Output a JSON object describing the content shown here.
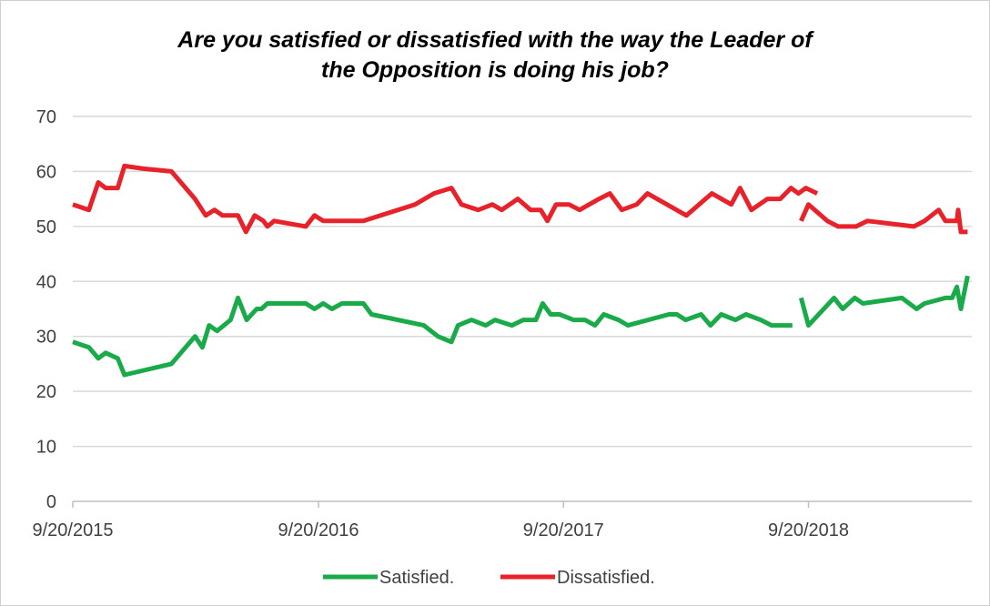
{
  "chart_data": {
    "type": "line",
    "title_line1": "Are you satisfied or dissatisfied with the way the Leader of",
    "title_line2": "the Opposition is doing his job?",
    "xlabel": "",
    "ylabel": "",
    "ylim": [
      0,
      70
    ],
    "y_ticks": [
      "0",
      "10",
      "20",
      "30",
      "40",
      "50",
      "60",
      "70"
    ],
    "x_ticks": [
      "9/20/2015",
      "9/20/2016",
      "9/20/2017",
      "9/20/2018"
    ],
    "x_range": [
      "2015-09-20",
      "2019-05-15"
    ],
    "grid": true,
    "legend_position": "bottom",
    "series": [
      {
        "name": "Satisfied.",
        "color": "#1aaa4a",
        "segments": [
          [
            [
              "2015-09-20",
              29
            ],
            [
              "2015-10-14",
              28
            ],
            [
              "2015-10-28",
              26
            ],
            [
              "2015-11-08",
              27
            ],
            [
              "2015-11-26",
              26
            ],
            [
              "2015-12-06",
              23
            ],
            [
              "2016-02-14",
              25
            ],
            [
              "2016-03-20",
              30
            ],
            [
              "2016-03-31",
              28
            ],
            [
              "2016-04-10",
              32
            ],
            [
              "2016-04-22",
              31
            ],
            [
              "2016-05-12",
              33
            ],
            [
              "2016-05-23",
              37
            ],
            [
              "2016-06-05",
              33
            ],
            [
              "2016-06-20",
              35
            ],
            [
              "2016-06-27",
              35
            ],
            [
              "2016-07-06",
              36
            ],
            [
              "2016-09-01",
              36
            ],
            [
              "2016-09-14",
              35
            ],
            [
              "2016-09-27",
              36
            ],
            [
              "2016-10-10",
              35
            ],
            [
              "2016-10-25",
              36
            ],
            [
              "2016-11-26",
              36
            ],
            [
              "2016-12-08",
              34
            ],
            [
              "2017-02-24",
              32
            ],
            [
              "2017-03-17",
              30
            ],
            [
              "2017-04-06",
              29
            ],
            [
              "2017-04-16",
              32
            ],
            [
              "2017-05-06",
              33
            ],
            [
              "2017-05-27",
              32
            ],
            [
              "2017-06-10",
              33
            ],
            [
              "2017-07-05",
              32
            ],
            [
              "2017-07-22",
              33
            ],
            [
              "2017-08-10",
              33
            ],
            [
              "2017-08-20",
              36
            ],
            [
              "2017-09-01",
              34
            ],
            [
              "2017-09-14",
              34
            ],
            [
              "2017-10-05",
              33
            ],
            [
              "2017-10-22",
              33
            ],
            [
              "2017-11-06",
              32
            ],
            [
              "2017-11-19",
              34
            ],
            [
              "2017-12-11",
              33
            ],
            [
              "2017-12-25",
              32
            ],
            [
              "2018-02-24",
              34
            ],
            [
              "2018-03-08",
              34
            ],
            [
              "2018-03-21",
              33
            ],
            [
              "2018-04-13",
              34
            ],
            [
              "2018-04-27",
              32
            ],
            [
              "2018-05-13",
              34
            ],
            [
              "2018-06-03",
              33
            ],
            [
              "2018-06-19",
              34
            ],
            [
              "2018-07-11",
              33
            ],
            [
              "2018-07-27",
              32
            ],
            [
              "2018-08-27",
              32
            ]
          ],
          [
            [
              "2018-09-09",
              37
            ],
            [
              "2018-09-20",
              32
            ],
            [
              "2018-10-28",
              37
            ],
            [
              "2018-11-10",
              35
            ],
            [
              "2018-11-28",
              37
            ],
            [
              "2018-12-10",
              36
            ],
            [
              "2019-02-06",
              37
            ],
            [
              "2019-02-28",
              35
            ],
            [
              "2019-03-12",
              36
            ],
            [
              "2019-04-12",
              37
            ],
            [
              "2019-04-22",
              37
            ],
            [
              "2019-04-29",
              39
            ],
            [
              "2019-05-05",
              35
            ],
            [
              "2019-05-15",
              41
            ]
          ]
        ]
      },
      {
        "name": "Dissatisfied.",
        "color": "#e8222a",
        "segments": [
          [
            [
              "2015-09-20",
              54
            ],
            [
              "2015-10-14",
              53
            ],
            [
              "2015-10-28",
              58
            ],
            [
              "2015-11-08",
              57
            ],
            [
              "2015-11-26",
              57
            ],
            [
              "2015-12-06",
              61
            ],
            [
              "2016-01-03",
              60.5
            ],
            [
              "2016-02-14",
              60
            ],
            [
              "2016-03-20",
              55
            ],
            [
              "2016-04-05",
              52
            ],
            [
              "2016-04-18",
              53
            ],
            [
              "2016-04-30",
              52
            ],
            [
              "2016-05-23",
              52
            ],
            [
              "2016-06-04",
              49
            ],
            [
              "2016-06-17",
              52
            ],
            [
              "2016-06-30",
              51
            ],
            [
              "2016-07-06",
              50
            ],
            [
              "2016-07-16",
              51
            ],
            [
              "2016-09-01",
              50
            ],
            [
              "2016-09-14",
              52
            ],
            [
              "2016-09-27",
              51
            ],
            [
              "2016-11-26",
              51
            ],
            [
              "2017-02-11",
              54
            ],
            [
              "2017-03-11",
              56
            ],
            [
              "2017-04-06",
              57
            ],
            [
              "2017-04-21",
              54
            ],
            [
              "2017-05-16",
              53
            ],
            [
              "2017-06-06",
              54
            ],
            [
              "2017-06-20",
              53
            ],
            [
              "2017-07-14",
              55
            ],
            [
              "2017-08-02",
              53
            ],
            [
              "2017-08-17",
              53
            ],
            [
              "2017-08-27",
              51
            ],
            [
              "2017-09-09",
              54
            ],
            [
              "2017-09-28",
              54
            ],
            [
              "2017-10-14",
              53
            ],
            [
              "2017-11-12",
              55
            ],
            [
              "2017-11-28",
              56
            ],
            [
              "2017-12-16",
              53
            ],
            [
              "2018-01-07",
              54
            ],
            [
              "2018-01-23",
              56
            ],
            [
              "2018-03-22",
              52
            ],
            [
              "2018-04-29",
              56
            ],
            [
              "2018-05-28",
              54
            ],
            [
              "2018-06-10",
              57
            ],
            [
              "2018-06-27",
              53
            ],
            [
              "2018-07-21",
              55
            ],
            [
              "2018-07-30",
              55
            ],
            [
              "2018-08-09",
              55
            ],
            [
              "2018-08-25",
              57
            ],
            [
              "2018-09-05",
              56
            ],
            [
              "2018-09-16",
              57
            ],
            [
              "2018-10-03",
              56
            ]
          ],
          [
            [
              "2018-09-09",
              51
            ],
            [
              "2018-09-20",
              54
            ],
            [
              "2018-10-18",
              51
            ],
            [
              "2018-11-03",
              50
            ],
            [
              "2018-11-30",
              50
            ],
            [
              "2018-12-17",
              51
            ],
            [
              "2019-02-24",
              50
            ],
            [
              "2019-03-12",
              51
            ],
            [
              "2019-04-02",
              53
            ],
            [
              "2019-04-12",
              51
            ],
            [
              "2019-04-22",
              51
            ],
            [
              "2019-04-29",
              51
            ],
            [
              "2019-05-01",
              53
            ],
            [
              "2019-05-05",
              49
            ],
            [
              "2019-05-15",
              49
            ]
          ]
        ]
      }
    ]
  }
}
